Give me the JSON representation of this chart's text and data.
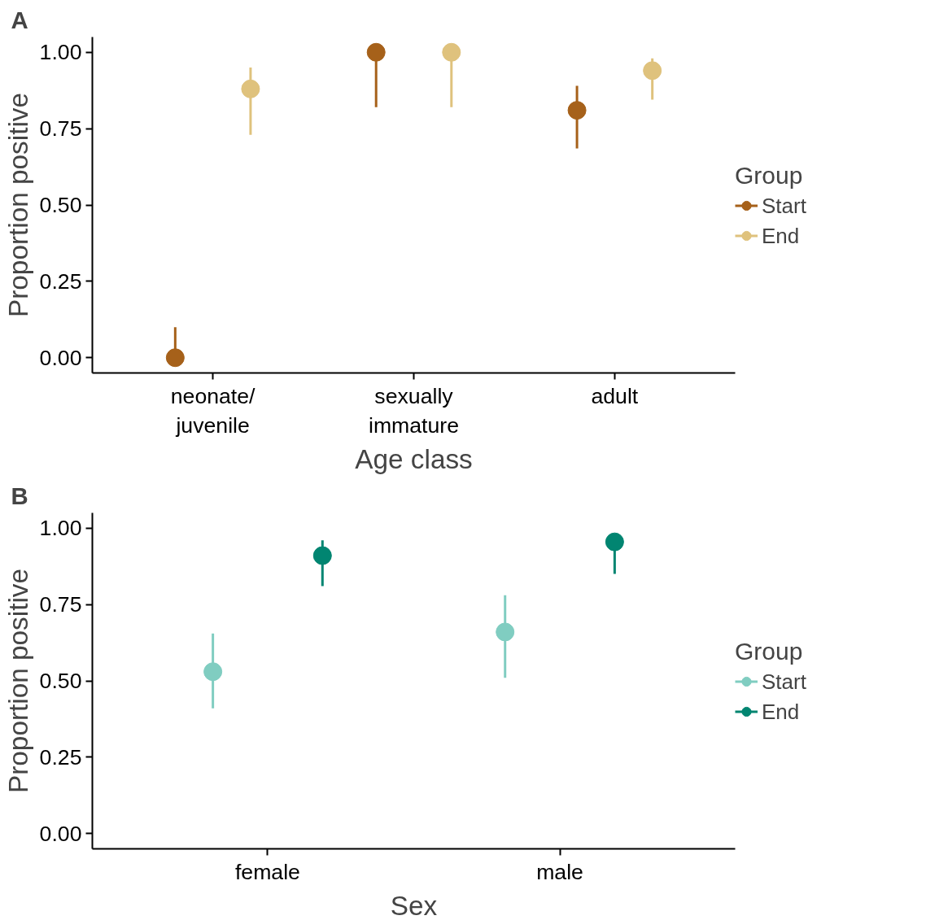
{
  "chart_data": [
    {
      "type": "scatter",
      "title": "A",
      "xlabel": "Age class",
      "ylabel": "Proportion positive",
      "legend_title": "Group",
      "legend": "right",
      "grid": false,
      "marker": "circle",
      "categories": [
        "neonate/\njuvenile",
        "sexually\nimmature",
        "adult"
      ],
      "ylim": [
        -0.05,
        1.05
      ],
      "yticks": [
        {
          "value": 0,
          "label": "0.00"
        },
        {
          "value": 0.25,
          "label": "0.25"
        },
        {
          "value": 0.5,
          "label": "0.50"
        },
        {
          "value": 0.75,
          "label": "0.75"
        },
        {
          "value": 1,
          "label": "1.00"
        }
      ],
      "series": [
        {
          "name": "Start",
          "color": "#a6611a",
          "values": [
            0.0,
            1.0,
            0.81
          ],
          "errors": [
            [
              0.0,
              0.1
            ],
            [
              0.82,
              1.0
            ],
            [
              0.685,
              0.89
            ]
          ]
        },
        {
          "name": "End",
          "color": "#dfc27d",
          "values": [
            0.88,
            1.0,
            0.94
          ],
          "errors": [
            [
              0.73,
              0.95
            ],
            [
              0.82,
              1.0
            ],
            [
              0.845,
              0.98
            ]
          ]
        }
      ]
    },
    {
      "type": "scatter",
      "title": "B",
      "xlabel": "Sex",
      "ylabel": "Proportion positive",
      "legend_title": "Group",
      "legend": "right",
      "grid": false,
      "marker": "circle",
      "categories": [
        "female",
        "male"
      ],
      "ylim": [
        -0.05,
        1.05
      ],
      "yticks": [
        {
          "value": 0,
          "label": "0.00"
        },
        {
          "value": 0.25,
          "label": "0.25"
        },
        {
          "value": 0.5,
          "label": "0.50"
        },
        {
          "value": 0.75,
          "label": "0.75"
        },
        {
          "value": 1,
          "label": "1.00"
        }
      ],
      "series": [
        {
          "name": "Start",
          "color": "#80cdc1",
          "values": [
            0.53,
            0.66
          ],
          "errors": [
            [
              0.41,
              0.655
            ],
            [
              0.51,
              0.78
            ]
          ]
        },
        {
          "name": "End",
          "color": "#018571",
          "values": [
            0.91,
            0.955
          ],
          "errors": [
            [
              0.81,
              0.96
            ],
            [
              0.85,
              0.98
            ]
          ]
        }
      ]
    }
  ]
}
